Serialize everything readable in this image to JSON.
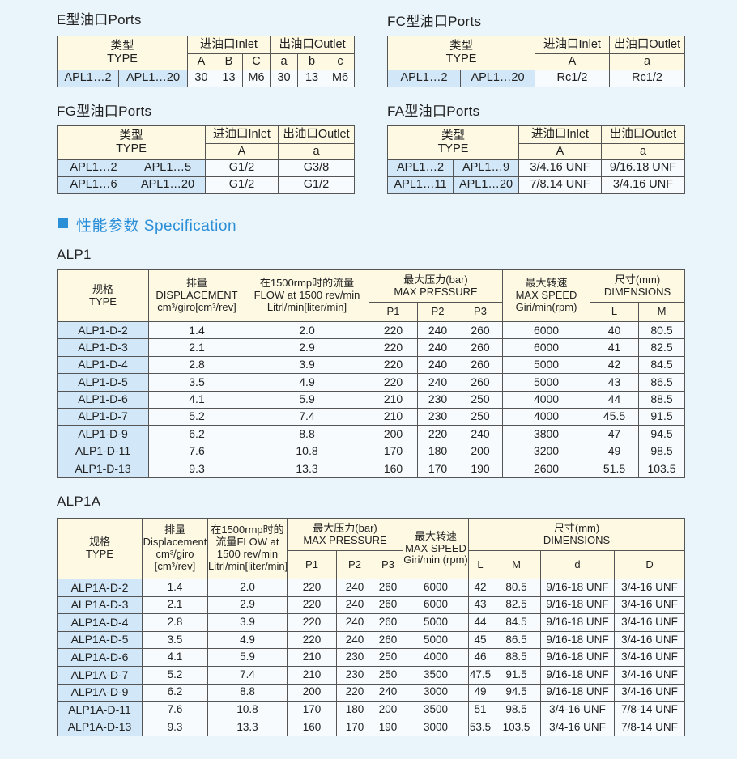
{
  "labels": {
    "type_cn": "类型",
    "type_en": "TYPE",
    "inlet": "进油口Inlet",
    "outlet": "出油口Outlet"
  },
  "e_ports": {
    "title": "E型油口Ports",
    "inlet_cols": [
      "A",
      "B",
      "C"
    ],
    "outlet_cols": [
      "a",
      "b",
      "c"
    ],
    "rows": [
      [
        "APL1…2",
        "APL1…20",
        "30",
        "13",
        "M6",
        "30",
        "13",
        "M6"
      ]
    ]
  },
  "fc_ports": {
    "title": "FC型油口Ports",
    "inlet_cols": [
      "A"
    ],
    "outlet_cols": [
      "a"
    ],
    "rows": [
      [
        "APL1…2",
        "APL1…20",
        "Rc1/2",
        "Rc1/2"
      ]
    ]
  },
  "fg_ports": {
    "title": "FG型油口Ports",
    "inlet_cols": [
      "A"
    ],
    "outlet_cols": [
      "a"
    ],
    "rows": [
      [
        "APL1…2",
        "APL1…5",
        "G1/2",
        "G3/8"
      ],
      [
        "APL1…6",
        "APL1…20",
        "G1/2",
        "G1/2"
      ]
    ]
  },
  "fa_ports": {
    "title": "FA型油口Ports",
    "inlet_cols": [
      "A"
    ],
    "outlet_cols": [
      "a"
    ],
    "rows": [
      [
        "APL1…2",
        "APL1…9",
        "3/4.16 UNF",
        "9/16.18 UNF"
      ],
      [
        "APL1…11",
        "APL1…20",
        "7/8.14 UNF",
        "3/4.16 UNF"
      ]
    ]
  },
  "section": {
    "title": "性能参数 Specification",
    "accent": "#2b8fd8"
  },
  "alp1": {
    "title": "ALP1",
    "headers": {
      "type": "规格 TYPE",
      "displacement": "排量 DISPLACEMENT cm³/giro[cm³/rev]",
      "flow": "在1500rmp时的流量 FLOW at 1500 rev/min Litrl/min[liter/min]",
      "pressure": "最大压力(bar) MAX PRESSURE",
      "speed": "最大转速 MAX SPEED Giri/min(rpm)",
      "dimensions": "尺寸(mm) DIMENSIONS",
      "sub": [
        "P1",
        "P2",
        "P3",
        "L",
        "M"
      ]
    },
    "rows": [
      [
        "ALP1-D-2",
        "1.4",
        "2.0",
        "220",
        "240",
        "260",
        "6000",
        "40",
        "80.5"
      ],
      [
        "ALP1-D-3",
        "2.1",
        "2.9",
        "220",
        "240",
        "260",
        "6000",
        "41",
        "82.5"
      ],
      [
        "ALP1-D-4",
        "2.8",
        "3.9",
        "220",
        "240",
        "260",
        "5000",
        "42",
        "84.5"
      ],
      [
        "ALP1-D-5",
        "3.5",
        "4.9",
        "220",
        "240",
        "260",
        "5000",
        "43",
        "86.5"
      ],
      [
        "ALP1-D-6",
        "4.1",
        "5.9",
        "210",
        "230",
        "250",
        "4000",
        "44",
        "88.5"
      ],
      [
        "ALP1-D-7",
        "5.2",
        "7.4",
        "210",
        "230",
        "250",
        "4000",
        "45.5",
        "91.5"
      ],
      [
        "ALP1-D-9",
        "6.2",
        "8.8",
        "200",
        "220",
        "240",
        "3800",
        "47",
        "94.5"
      ],
      [
        "ALP1-D-11",
        "7.6",
        "10.8",
        "170",
        "180",
        "200",
        "3200",
        "49",
        "98.5"
      ],
      [
        "ALP1-D-13",
        "9.3",
        "13.3",
        "160",
        "170",
        "190",
        "2600",
        "51.5",
        "103.5"
      ]
    ]
  },
  "alp1a": {
    "title": "ALP1A",
    "headers": {
      "type": "规格 TYPE",
      "displacement": "排量 Displacement cm³/giro [cm³/rev]",
      "flow": "在1500rmp时的流量FLOW at 1500 rev/min Litrl/min[liter/min]",
      "pressure": "最大压力(bar) MAX PRESSURE",
      "speed": "最大转速 MAX SPEED Giri/min (rpm)",
      "dimensions": "尺寸(mm) DIMENSIONS",
      "sub": [
        "P1",
        "P2",
        "P3",
        "L",
        "M",
        "d",
        "D"
      ]
    },
    "rows": [
      [
        "ALP1A-D-2",
        "1.4",
        "2.0",
        "220",
        "240",
        "260",
        "6000",
        "42",
        "80.5",
        "9/16-18 UNF",
        "3/4-16 UNF"
      ],
      [
        "ALP1A-D-3",
        "2.1",
        "2.9",
        "220",
        "240",
        "260",
        "6000",
        "43",
        "82.5",
        "9/16-18 UNF",
        "3/4-16 UNF"
      ],
      [
        "ALP1A-D-4",
        "2.8",
        "3.9",
        "220",
        "240",
        "260",
        "5000",
        "44",
        "84.5",
        "9/16-18 UNF",
        "3/4-16 UNF"
      ],
      [
        "ALP1A-D-5",
        "3.5",
        "4.9",
        "220",
        "240",
        "260",
        "5000",
        "45",
        "86.5",
        "9/16-18 UNF",
        "3/4-16 UNF"
      ],
      [
        "ALP1A-D-6",
        "4.1",
        "5.9",
        "210",
        "230",
        "250",
        "4000",
        "46",
        "88.5",
        "9/16-18 UNF",
        "3/4-16 UNF"
      ],
      [
        "ALP1A-D-7",
        "5.2",
        "7.4",
        "210",
        "230",
        "250",
        "3500",
        "47.5",
        "91.5",
        "9/16-18 UNF",
        "3/4-16 UNF"
      ],
      [
        "ALP1A-D-9",
        "6.2",
        "8.8",
        "200",
        "220",
        "240",
        "3000",
        "49",
        "94.5",
        "9/16-18 UNF",
        "3/4-16 UNF"
      ],
      [
        "ALP1A-D-11",
        "7.6",
        "10.8",
        "170",
        "180",
        "200",
        "3500",
        "51",
        "98.5",
        "3/4-16 UNF",
        "7/8-14 UNF"
      ],
      [
        "ALP1A-D-13",
        "9.3",
        "13.3",
        "160",
        "170",
        "190",
        "3000",
        "53.5",
        "103.5",
        "3/4-16 UNF",
        "7/8-14 UNF"
      ]
    ]
  }
}
